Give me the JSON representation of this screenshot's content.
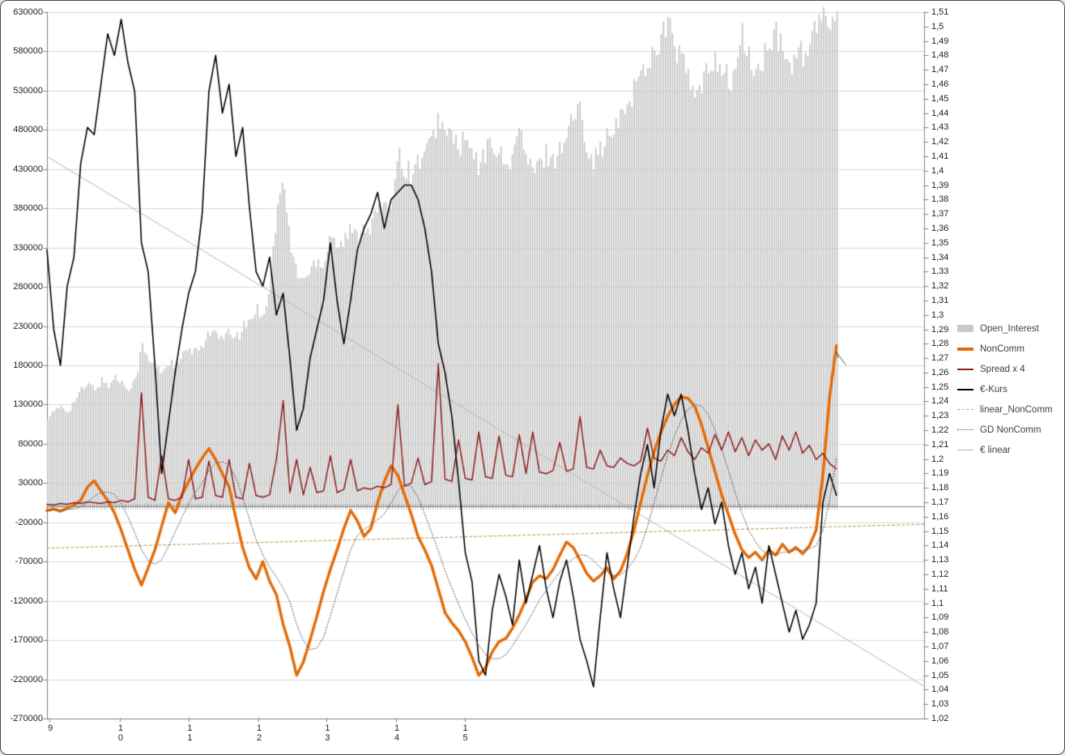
{
  "figure": {
    "background": "#ffffff",
    "border_color": "#4a4a4a",
    "grid_color": "#d8d8d8",
    "axis_color": "#808080"
  },
  "legend": {
    "items": [
      {
        "label": "Open_Interest",
        "swatch": "bar",
        "color": "#c9c9c9"
      },
      {
        "label": "NonComm",
        "swatch": "thickline",
        "color": "#e36c09"
      },
      {
        "label": "Spread x 4",
        "swatch": "line",
        "color": "#8e1b1b"
      },
      {
        "label": "€-Kurs",
        "swatch": "line",
        "color": "#000000"
      },
      {
        "label": "linear_NonComm",
        "swatch": "dashed",
        "color": "#c8a165"
      },
      {
        "label": "GD NonComm",
        "swatch": "dotted",
        "color": "#595959"
      },
      {
        "label": "€ linear",
        "swatch": "thinline",
        "color": "#b4b4b4"
      }
    ]
  },
  "chart_data": {
    "type": "combo",
    "title": "",
    "data_extent_fraction": 0.9,
    "left_axis": {
      "min": -270000,
      "max": 630000,
      "step": 50000,
      "labels": [
        "630000",
        "580000",
        "530000",
        "480000",
        "430000",
        "380000",
        "330000",
        "280000",
        "230000",
        "180000",
        "130000",
        "80000",
        "30000",
        "-20000",
        "-70000",
        "-120000",
        "-170000",
        "-220000",
        "-270000"
      ]
    },
    "right_axis": {
      "min": 1.02,
      "max": 1.51,
      "step": 0.01,
      "labels": [
        "1,51",
        "1,5",
        "1,49",
        "1,48",
        "1,47",
        "1,46",
        "1,45",
        "1,44",
        "1,43",
        "1,42",
        "1,41",
        "1,4",
        "1,39",
        "1,38",
        "1,37",
        "1,36",
        "1,35",
        "1,34",
        "1,33",
        "1,32",
        "1,31",
        "1,3",
        "1,29",
        "1,28",
        "1,27",
        "1,26",
        "1,25",
        "1,24",
        "1,23",
        "1,22",
        "1,21",
        "1,2",
        "1,19",
        "1,18",
        "1,17",
        "1,16",
        "1,15",
        "1,14",
        "1,13",
        "1,12",
        "1,11",
        "1,1",
        "1,09",
        "1,08",
        "1,07",
        "1,06",
        "1,05",
        "1,04",
        "1,03",
        "1,02"
      ]
    },
    "x_axis": {
      "ticks": [
        {
          "label": "9",
          "pos": 0.003
        },
        {
          "label": "10",
          "pos": 0.083
        },
        {
          "label": "11",
          "pos": 0.162
        },
        {
          "label": "12",
          "pos": 0.241
        },
        {
          "label": "13",
          "pos": 0.319
        },
        {
          "label": "14",
          "pos": 0.398
        },
        {
          "label": "15",
          "pos": 0.476
        }
      ]
    },
    "series": [
      {
        "name": "Open_Interest",
        "type": "bar",
        "axis": "left",
        "color": "#c9c9c9",
        "values": [
          115000,
          120000,
          128000,
          122000,
          135000,
          148000,
          155000,
          150000,
          160000,
          155000,
          165000,
          158000,
          152000,
          162000,
          205000,
          185000,
          178000,
          172000,
          185000,
          178000,
          192000,
          200000,
          195000,
          208000,
          225000,
          218000,
          212000,
          222000,
          215000,
          228000,
          238000,
          252000,
          245000,
          285000,
          380000,
          415000,
          330000,
          298000,
          288000,
          302000,
          318000,
          308000,
          355000,
          330000,
          340000,
          352000,
          342000,
          362000,
          355000,
          385000,
          372000,
          395000,
          455000,
          430000,
          422000,
          442000,
          452000,
          462000,
          502000,
          468000,
          478000,
          455000,
          468000,
          445000,
          432000,
          452000,
          468000,
          448000,
          428000,
          455000,
          478000,
          442000,
          425000,
          435000,
          452000,
          440000,
          458000,
          478000,
          498000,
          505000,
          462000,
          442000,
          458000,
          468000,
          478000,
          495000,
          515000,
          535000,
          552000,
          568000,
          582000,
          605000,
          612000,
          588000,
          568000,
          545000,
          518000,
          535000,
          555000,
          578000,
          558000,
          538000,
          558000,
          598000,
          572000,
          548000,
          568000,
          588000,
          598000,
          578000,
          558000,
          588000,
          568000,
          592000,
          608000,
          618000,
          628000,
          622000
        ]
      },
      {
        "name": "NonComm",
        "type": "line",
        "axis": "left",
        "color": "#e36c09",
        "width": 3.5,
        "values": [
          -5000,
          -3000,
          -6000,
          -2000,
          2000,
          8000,
          25000,
          33000,
          20000,
          8000,
          -8000,
          -30000,
          -55000,
          -80000,
          -100000,
          -78000,
          -55000,
          -25000,
          5000,
          -8000,
          15000,
          32000,
          48000,
          62000,
          74000,
          60000,
          42000,
          25000,
          -15000,
          -52000,
          -78000,
          -92000,
          -70000,
          -95000,
          -112000,
          -150000,
          -178000,
          -215000,
          -198000,
          -170000,
          -140000,
          -108000,
          -80000,
          -55000,
          -28000,
          -5000,
          -18000,
          -38000,
          -28000,
          5000,
          32000,
          52000,
          40000,
          15000,
          -10000,
          -38000,
          -55000,
          -75000,
          -105000,
          -135000,
          -148000,
          -158000,
          -172000,
          -192000,
          -215000,
          -205000,
          -185000,
          -172000,
          -168000,
          -155000,
          -138000,
          -118000,
          -96000,
          -88000,
          -92000,
          -80000,
          -62000,
          -45000,
          -52000,
          -68000,
          -85000,
          -95000,
          -88000,
          -78000,
          -92000,
          -82000,
          -60000,
          -30000,
          5000,
          40000,
          70000,
          95000,
          115000,
          130000,
          140000,
          138000,
          128000,
          105000,
          75000,
          45000,
          15000,
          -10000,
          -35000,
          -55000,
          -65000,
          -58000,
          -68000,
          -55000,
          -62000,
          -48000,
          -58000,
          -52000,
          -60000,
          -50000,
          -30000,
          40000,
          140000,
          205000
        ]
      },
      {
        "name": "Spread x 4",
        "type": "line",
        "axis": "left",
        "color": "#8e1b1b",
        "width": 1.5,
        "values": [
          3000,
          2000,
          4000,
          3000,
          5000,
          4000,
          6000,
          5000,
          4000,
          6000,
          5000,
          8000,
          6000,
          10000,
          145000,
          12000,
          8000,
          65000,
          10000,
          8000,
          12000,
          60000,
          10000,
          12000,
          58000,
          14000,
          12000,
          60000,
          12000,
          10000,
          55000,
          14000,
          12000,
          15000,
          60000,
          135000,
          18000,
          60000,
          15000,
          50000,
          18000,
          20000,
          65000,
          18000,
          22000,
          60000,
          20000,
          24000,
          22000,
          26000,
          24000,
          28000,
          130000,
          26000,
          30000,
          62000,
          28000,
          32000,
          182000,
          35000,
          32000,
          85000,
          36000,
          34000,
          95000,
          38000,
          36000,
          90000,
          40000,
          38000,
          92000,
          42000,
          95000,
          44000,
          42000,
          46000,
          82000,
          45000,
          48000,
          115000,
          50000,
          48000,
          72000,
          52000,
          50000,
          62000,
          55000,
          52000,
          58000,
          100000,
          62000,
          58000,
          72000,
          65000,
          88000,
          70000,
          60000,
          75000,
          68000,
          92000,
          72000,
          95000,
          70000,
          88000,
          65000,
          85000,
          72000,
          80000,
          60000,
          90000,
          72000,
          95000,
          68000,
          78000,
          60000,
          68000,
          55000,
          48000
        ]
      },
      {
        "name": "€-Kurs",
        "type": "line",
        "axis": "right",
        "color": "#000000",
        "width": 1.6,
        "values": [
          1.345,
          1.29,
          1.265,
          1.32,
          1.34,
          1.405,
          1.43,
          1.425,
          1.46,
          1.495,
          1.48,
          1.505,
          1.475,
          1.455,
          1.35,
          1.33,
          1.265,
          1.19,
          1.225,
          1.26,
          1.29,
          1.315,
          1.33,
          1.37,
          1.455,
          1.48,
          1.44,
          1.46,
          1.41,
          1.43,
          1.375,
          1.33,
          1.32,
          1.34,
          1.3,
          1.315,
          1.27,
          1.22,
          1.235,
          1.27,
          1.29,
          1.31,
          1.35,
          1.31,
          1.28,
          1.31,
          1.345,
          1.36,
          1.37,
          1.385,
          1.36,
          1.38,
          1.385,
          1.39,
          1.39,
          1.38,
          1.36,
          1.33,
          1.28,
          1.26,
          1.23,
          1.185,
          1.135,
          1.115,
          1.06,
          1.05,
          1.095,
          1.12,
          1.105,
          1.085,
          1.13,
          1.1,
          1.12,
          1.14,
          1.11,
          1.09,
          1.115,
          1.13,
          1.105,
          1.075,
          1.06,
          1.042,
          1.09,
          1.135,
          1.11,
          1.09,
          1.125,
          1.16,
          1.19,
          1.21,
          1.18,
          1.22,
          1.245,
          1.23,
          1.245,
          1.22,
          1.19,
          1.165,
          1.18,
          1.155,
          1.17,
          1.14,
          1.12,
          1.135,
          1.11,
          1.125,
          1.1,
          1.14,
          1.12,
          1.1,
          1.08,
          1.095,
          1.075,
          1.085,
          1.1,
          1.17,
          1.19,
          1.175
        ]
      },
      {
        "name": "linear_NonComm",
        "type": "trendline",
        "of": "NonComm",
        "axis": "left",
        "style": "dashed",
        "color": "#c8a165"
      },
      {
        "name": "GD NonComm",
        "type": "moving_average",
        "of": "NonComm",
        "axis": "left",
        "window": 5,
        "style": "dotted",
        "color": "#595959"
      },
      {
        "name": "€ linear",
        "type": "trendline",
        "of": "€-Kurs",
        "axis": "right",
        "style": "solid",
        "color": "#b4b4b4"
      }
    ]
  }
}
